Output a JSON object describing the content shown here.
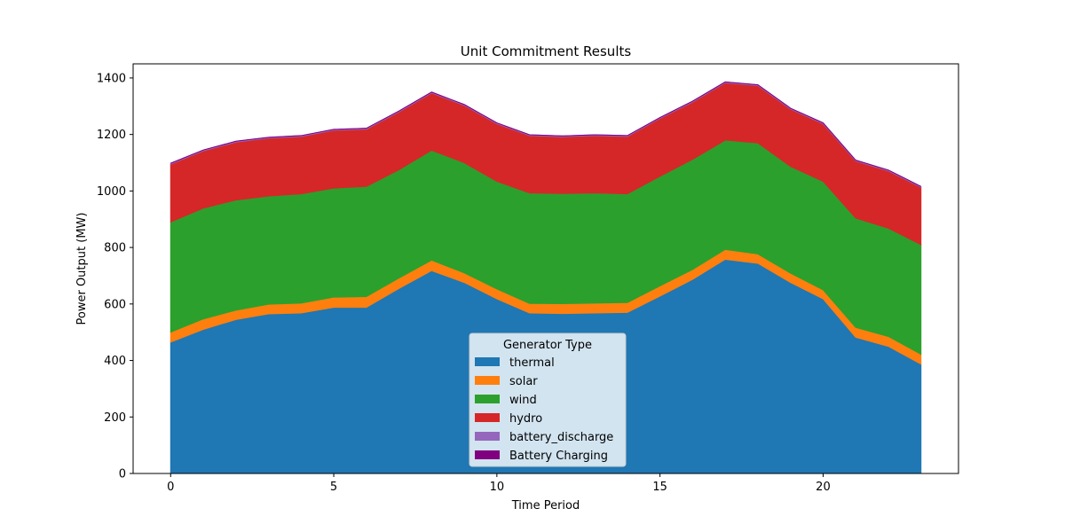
{
  "chart_data": {
    "type": "area",
    "title": "Unit Commitment Results",
    "xlabel": "Time Period",
    "ylabel": "Power Output (MW)",
    "xlim": [
      -1.15,
      24.15
    ],
    "ylim": [
      0,
      1450
    ],
    "xticks": [
      0,
      5,
      10,
      15,
      20
    ],
    "yticks": [
      0,
      200,
      400,
      600,
      800,
      1000,
      1200,
      1400
    ],
    "x": [
      0,
      1,
      2,
      3,
      4,
      5,
      6,
      7,
      8,
      9,
      10,
      11,
      12,
      13,
      14,
      15,
      16,
      17,
      18,
      19,
      20,
      21,
      22,
      23
    ],
    "series": [
      {
        "name": "thermal",
        "color": "#1f77b4",
        "values": [
          465,
          510,
          545,
          565,
          568,
          588,
          588,
          655,
          718,
          676,
          618,
          568,
          566,
          568,
          570,
          628,
          687,
          758,
          744,
          676,
          618,
          482,
          450,
          387
        ]
      },
      {
        "name": "solar",
        "color": "#ff7f0e",
        "values": [
          35,
          37,
          33,
          34,
          35,
          36,
          38,
          37,
          37,
          34,
          35,
          34,
          35,
          35,
          35,
          36,
          35,
          35,
          33,
          33,
          32,
          35,
          35,
          35
        ]
      },
      {
        "name": "wind",
        "color": "#2ca02c",
        "values": [
          390,
          392,
          390,
          383,
          387,
          386,
          390,
          383,
          389,
          390,
          381,
          391,
          390,
          390,
          385,
          388,
          390,
          387,
          393,
          378,
          384,
          387,
          383,
          388
        ]
      },
      {
        "name": "hydro",
        "color": "#d62728",
        "values": [
          205,
          203,
          205,
          205,
          203,
          205,
          203,
          205,
          203,
          203,
          204,
          203,
          201,
          203,
          203,
          205,
          203,
          203,
          203,
          203,
          204,
          202,
          203,
          203
        ]
      },
      {
        "name": "battery_discharge",
        "color": "#9467bd",
        "values": [
          3,
          3,
          3,
          3,
          3,
          3,
          3,
          3,
          3,
          3,
          3,
          3,
          3,
          3,
          3,
          3,
          3,
          3,
          3,
          3,
          3,
          3,
          3,
          3
        ]
      },
      {
        "name": "Battery Charging",
        "color": "#800080",
        "values": [
          0,
          0,
          0,
          0,
          0,
          0,
          0,
          0,
          0,
          0,
          0,
          0,
          0,
          0,
          0,
          0,
          0,
          0,
          0,
          0,
          0,
          0,
          0,
          0
        ]
      }
    ],
    "legend": {
      "title": "Generator Type",
      "placement": "lower-center"
    },
    "grid": false
  }
}
